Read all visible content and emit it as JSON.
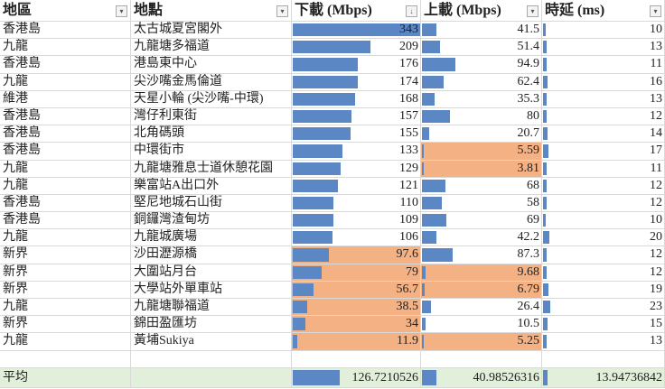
{
  "headers": [
    {
      "label": "地區",
      "filter": "▾"
    },
    {
      "label": "地點",
      "filter": "▾"
    },
    {
      "label": "下載 (Mbps)",
      "filter": "↓"
    },
    {
      "label": "上載 (Mbps)",
      "filter": "▾"
    },
    {
      "label": "時延 (ms)",
      "filter": "▾"
    }
  ],
  "rows": [
    [
      "香港島",
      "太古城夏宮閣外",
      "343",
      "41.5",
      "10"
    ],
    [
      "九龍",
      "九龍塘多福道",
      "209",
      "51.4",
      "13"
    ],
    [
      "香港島",
      "港島東中心",
      "176",
      "94.9",
      "11"
    ],
    [
      "九龍",
      "尖沙嘴金馬倫道",
      "174",
      "62.4",
      "16"
    ],
    [
      "維港",
      "天星小輪 (尖沙嘴-中環)",
      "168",
      "35.3",
      "13"
    ],
    [
      "香港島",
      "灣仔利東街",
      "157",
      "80",
      "12"
    ],
    [
      "香港島",
      "北角碼頭",
      "155",
      "20.7",
      "14"
    ],
    [
      "香港島",
      "中環街市",
      "133",
      "5.59",
      "17"
    ],
    [
      "九龍",
      "九龍塘雅息士道休憩花園",
      "129",
      "3.81",
      "11"
    ],
    [
      "九龍",
      "樂富站A出口外",
      "121",
      "68",
      "12"
    ],
    [
      "香港島",
      "堅尼地城石山街",
      "110",
      "58",
      "12"
    ],
    [
      "香港島",
      "銅鑼灣渣甸坊",
      "109",
      "69",
      "10"
    ],
    [
      "九龍",
      "九龍城廣場",
      "106",
      "42.2",
      "20"
    ],
    [
      "新界",
      "沙田瀝源橋",
      "97.6",
      "87.3",
      "12"
    ],
    [
      "新界",
      "大圍站月台",
      "79",
      "9.68",
      "12"
    ],
    [
      "新界",
      "大學站外單車站",
      "56.7",
      "6.79",
      "19"
    ],
    [
      "九龍",
      "九龍塘聯福道",
      "38.5",
      "26.4",
      "23"
    ],
    [
      "新界",
      "錦田盈匯坊",
      "34",
      "10.5",
      "15"
    ],
    [
      "九龍",
      "黃埔Sukiya",
      "11.9",
      "5.25",
      "13"
    ]
  ],
  "average": {
    "label": "平均",
    "download": "126.7210526",
    "upload": "40.98526316",
    "latency": "13.94736842"
  },
  "colors": {
    "bar": "#5b87c5",
    "highlight": "#f4b183",
    "average_bg": "#e2efda"
  }
}
